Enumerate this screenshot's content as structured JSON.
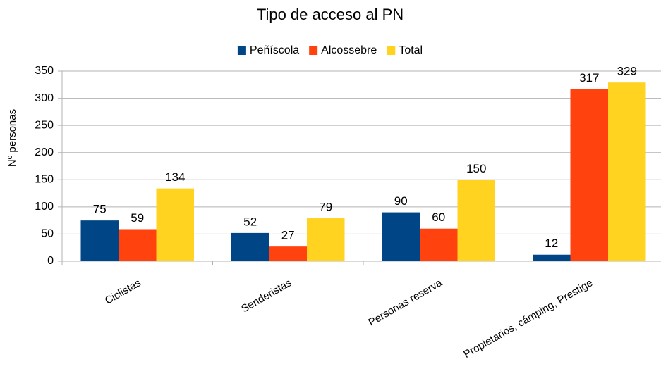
{
  "chart_data": {
    "type": "bar",
    "title": "Tipo de acceso al PN",
    "y_label": "Nº personas",
    "categories": [
      "Ciclistas",
      "Senderistas",
      "Personas reserva",
      "Propietarios, cámping, Prestige"
    ],
    "series": [
      {
        "name": "Peñíscola",
        "color": "#004586",
        "values": [
          75,
          52,
          90,
          12
        ]
      },
      {
        "name": "Alcossebre",
        "color": "#ff420e",
        "values": [
          59,
          27,
          60,
          317
        ]
      },
      {
        "name": "Total",
        "color": "#ffd320",
        "values": [
          134,
          79,
          150,
          329
        ]
      }
    ],
    "ylim": [
      0,
      350
    ],
    "yticks": [
      0,
      50,
      100,
      150,
      200,
      250,
      300,
      350
    ],
    "grid": true,
    "legend": "top"
  }
}
